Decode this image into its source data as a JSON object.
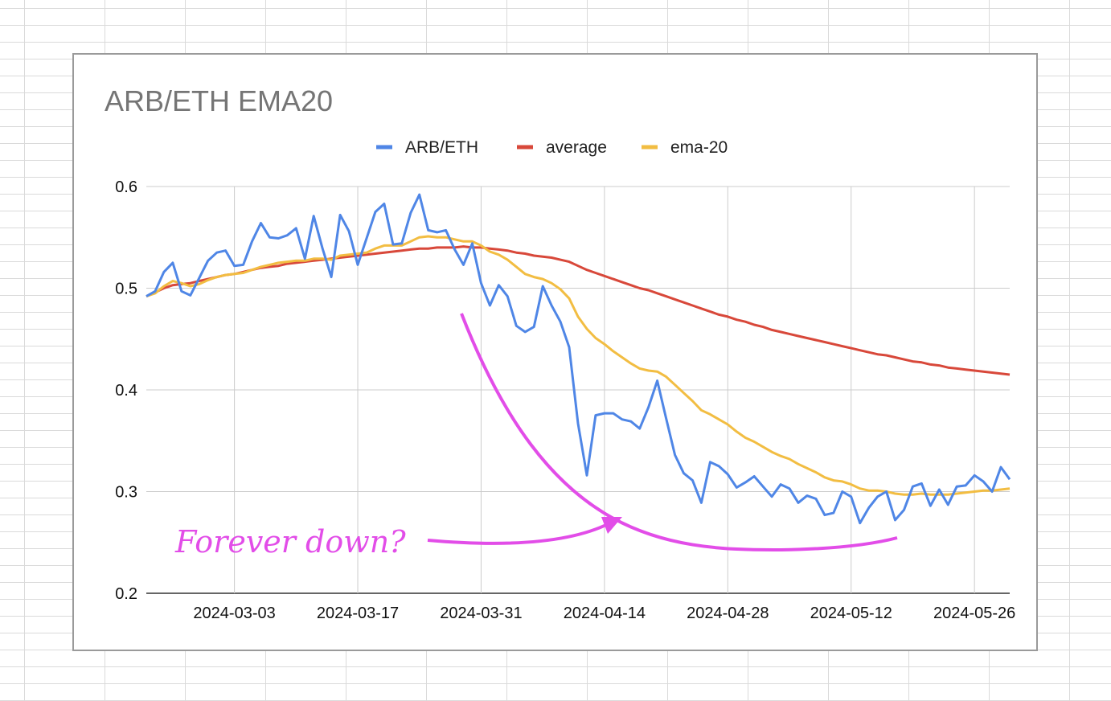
{
  "chart_data": {
    "type": "line",
    "title": "ARB/ETH EMA20",
    "xlabel": "",
    "ylabel": "",
    "ylim": [
      0.2,
      0.6
    ],
    "yticks": [
      "0.2",
      "0.3",
      "0.4",
      "0.5",
      "0.6"
    ],
    "x_start": "2024-02-22",
    "x_end": "2024-05-30",
    "xticks": [
      {
        "label": "2024-03-03",
        "day": 10
      },
      {
        "label": "2024-03-17",
        "day": 24
      },
      {
        "label": "2024-03-31",
        "day": 38
      },
      {
        "label": "2024-04-14",
        "day": 52
      },
      {
        "label": "2024-04-28",
        "day": 66
      },
      {
        "label": "2024-05-12",
        "day": 80
      },
      {
        "label": "2024-05-26",
        "day": 94
      }
    ],
    "legend_position": "top-center",
    "series": [
      {
        "name": "ARB/ETH",
        "color": "#4f86e6",
        "values": [
          0.492,
          0.497,
          0.516,
          0.525,
          0.497,
          0.493,
          0.51,
          0.527,
          0.535,
          0.537,
          0.522,
          0.523,
          0.546,
          0.564,
          0.55,
          0.549,
          0.552,
          0.559,
          0.529,
          0.571,
          0.539,
          0.511,
          0.572,
          0.556,
          0.523,
          0.549,
          0.575,
          0.583,
          0.543,
          0.544,
          0.574,
          0.592,
          0.557,
          0.555,
          0.557,
          0.538,
          0.523,
          0.544,
          0.505,
          0.483,
          0.503,
          0.492,
          0.463,
          0.457,
          0.462,
          0.502,
          0.483,
          0.467,
          0.442,
          0.367,
          0.316,
          0.375,
          0.377,
          0.377,
          0.371,
          0.369,
          0.362,
          0.383,
          0.409,
          0.372,
          0.336,
          0.318,
          0.311,
          0.289,
          0.329,
          0.325,
          0.317,
          0.304,
          0.309,
          0.315,
          0.305,
          0.295,
          0.307,
          0.303,
          0.289,
          0.296,
          0.293,
          0.277,
          0.279,
          0.3,
          0.295,
          0.269,
          0.284,
          0.295,
          0.3,
          0.272,
          0.282,
          0.305,
          0.308,
          0.286,
          0.302,
          0.287,
          0.305,
          0.306,
          0.316,
          0.31,
          0.3,
          0.324,
          0.312
        ]
      },
      {
        "name": "average",
        "color": "#d8483a",
        "values": [
          0.492,
          0.496,
          0.5,
          0.503,
          0.504,
          0.505,
          0.507,
          0.509,
          0.511,
          0.513,
          0.514,
          0.516,
          0.518,
          0.52,
          0.521,
          0.522,
          0.524,
          0.525,
          0.526,
          0.527,
          0.528,
          0.529,
          0.53,
          0.531,
          0.532,
          0.533,
          0.534,
          0.535,
          0.536,
          0.537,
          0.538,
          0.539,
          0.539,
          0.54,
          0.54,
          0.54,
          0.541,
          0.54,
          0.54,
          0.539,
          0.538,
          0.537,
          0.535,
          0.534,
          0.532,
          0.531,
          0.53,
          0.528,
          0.526,
          0.522,
          0.518,
          0.515,
          0.512,
          0.509,
          0.506,
          0.503,
          0.5,
          0.498,
          0.495,
          0.492,
          0.489,
          0.486,
          0.483,
          0.48,
          0.477,
          0.474,
          0.472,
          0.469,
          0.467,
          0.464,
          0.462,
          0.459,
          0.457,
          0.455,
          0.453,
          0.451,
          0.449,
          0.447,
          0.445,
          0.443,
          0.441,
          0.439,
          0.437,
          0.435,
          0.434,
          0.432,
          0.43,
          0.428,
          0.427,
          0.425,
          0.424,
          0.422,
          0.421,
          0.42,
          0.419,
          0.418,
          0.417,
          0.416,
          0.415
        ]
      },
      {
        "name": "ema-20",
        "color": "#f2bd42",
        "values": [
          0.492,
          0.495,
          0.502,
          0.507,
          0.505,
          0.502,
          0.504,
          0.508,
          0.511,
          0.513,
          0.514,
          0.515,
          0.518,
          0.521,
          0.523,
          0.525,
          0.526,
          0.527,
          0.527,
          0.529,
          0.529,
          0.528,
          0.532,
          0.533,
          0.534,
          0.535,
          0.539,
          0.542,
          0.542,
          0.542,
          0.546,
          0.55,
          0.551,
          0.55,
          0.55,
          0.548,
          0.546,
          0.546,
          0.542,
          0.536,
          0.533,
          0.528,
          0.521,
          0.514,
          0.511,
          0.509,
          0.505,
          0.499,
          0.49,
          0.472,
          0.46,
          0.451,
          0.445,
          0.438,
          0.432,
          0.426,
          0.421,
          0.419,
          0.418,
          0.413,
          0.405,
          0.397,
          0.389,
          0.38,
          0.376,
          0.371,
          0.366,
          0.359,
          0.353,
          0.349,
          0.344,
          0.339,
          0.335,
          0.332,
          0.327,
          0.323,
          0.319,
          0.314,
          0.311,
          0.31,
          0.307,
          0.303,
          0.301,
          0.301,
          0.3,
          0.298,
          0.297,
          0.297,
          0.298,
          0.297,
          0.297,
          0.297,
          0.298,
          0.299,
          0.3,
          0.301,
          0.301,
          0.302,
          0.303
        ]
      }
    ],
    "annotations": [
      {
        "text": "Forever down?",
        "color": "#e24de8"
      }
    ]
  }
}
